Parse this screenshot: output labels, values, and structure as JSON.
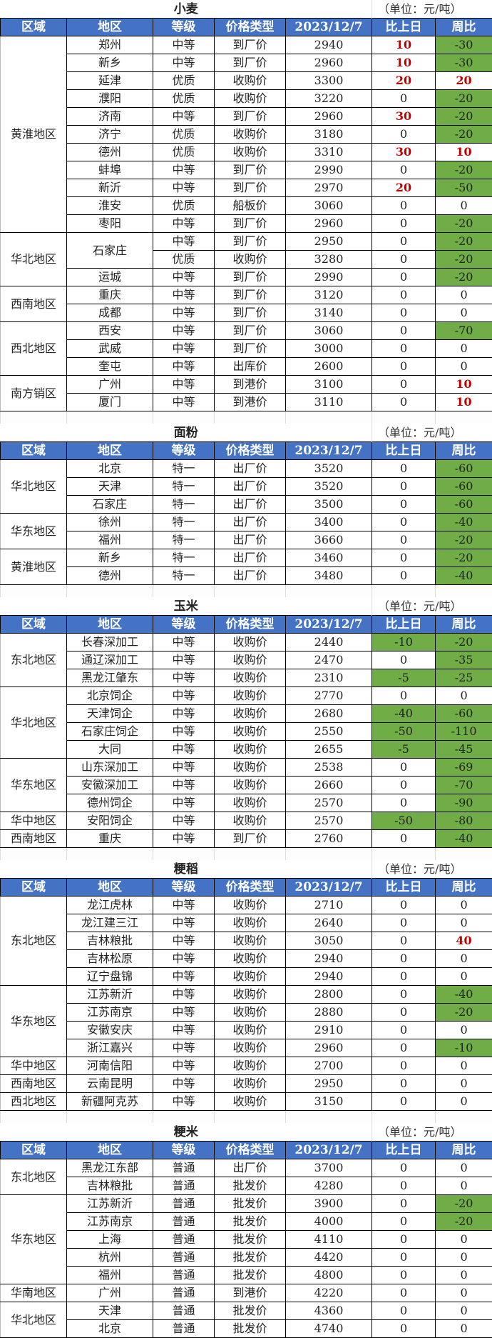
{
  "unit": "（单位：元/吨）",
  "headers": [
    "区域",
    "地区",
    "等级",
    "价格类型",
    "2023/12/7",
    "比上日",
    "周比"
  ],
  "colors": {
    "header_bg": "#4472C4",
    "decrease_bg": "#70AD47",
    "increase_text": "#C00000"
  },
  "tables": [
    {
      "title": "小麦",
      "groups": [
        {
          "region": "黄淮地区",
          "rows": [
            [
              "郑州",
              "中等",
              "到厂价",
              "2940",
              "10",
              "-30"
            ],
            [
              "新乡",
              "中等",
              "到厂价",
              "2960",
              "10",
              "-30"
            ],
            [
              "延津",
              "优质",
              "收购价",
              "3300",
              "20",
              "20"
            ],
            [
              "濮阳",
              "优质",
              "收购价",
              "3220",
              "0",
              "-20"
            ],
            [
              "济南",
              "中等",
              "到厂价",
              "2960",
              "30",
              "-20"
            ],
            [
              "济宁",
              "优质",
              "收购价",
              "3180",
              "0",
              "-20"
            ],
            [
              "德州",
              "优质",
              "收购价",
              "3310",
              "30",
              "10"
            ],
            [
              "蚌埠",
              "中等",
              "到厂价",
              "2990",
              "0",
              "-20"
            ],
            [
              "新沂",
              "中等",
              "到厂价",
              "2970",
              "20",
              "-50"
            ],
            [
              "淮安",
              "优质",
              "船板价",
              "3060",
              "0",
              "0"
            ],
            [
              "枣阳",
              "中等",
              "到厂价",
              "2960",
              "0",
              "-20"
            ]
          ]
        },
        {
          "region": "华北地区",
          "rows": [
            [
              "石家庄",
              "中等",
              "到厂价",
              "2950",
              "0",
              "-20"
            ],
            [
              "",
              "优质",
              "收购价",
              "3280",
              "0",
              "-20"
            ],
            [
              "运城",
              "中等",
              "到厂价",
              "2990",
              "0",
              "-20"
            ]
          ]
        },
        {
          "region": "西南地区",
          "rows": [
            [
              "重庆",
              "中等",
              "到厂价",
              "3120",
              "0",
              "0"
            ],
            [
              "成都",
              "中等",
              "到厂价",
              "3140",
              "0",
              "0"
            ]
          ]
        },
        {
          "region": "西北地区",
          "rows": [
            [
              "西安",
              "中等",
              "到厂价",
              "3060",
              "0",
              "-70"
            ],
            [
              "武威",
              "中等",
              "到厂价",
              "3000",
              "0",
              "0"
            ],
            [
              "奎屯",
              "中等",
              "出库价",
              "2600",
              "0",
              "0"
            ]
          ]
        },
        {
          "region": "南方销区",
          "rows": [
            [
              "广州",
              "中等",
              "到港价",
              "3100",
              "0",
              "10"
            ],
            [
              "厦门",
              "中等",
              "到港价",
              "3110",
              "0",
              "10"
            ]
          ]
        }
      ]
    },
    {
      "title": "面粉",
      "groups": [
        {
          "region": "华北地区",
          "rows": [
            [
              "北京",
              "特一",
              "出厂价",
              "3520",
              "0",
              "-60"
            ],
            [
              "天津",
              "特一",
              "出厂价",
              "3520",
              "0",
              "-60"
            ],
            [
              "石家庄",
              "特一",
              "出厂价",
              "3500",
              "0",
              "-60"
            ]
          ]
        },
        {
          "region": "华东地区",
          "rows": [
            [
              "徐州",
              "特一",
              "出厂价",
              "3400",
              "0",
              "-40"
            ],
            [
              "福州",
              "特一",
              "出厂价",
              "3660",
              "0",
              "-20"
            ]
          ]
        },
        {
          "region": "黄淮地区",
          "rows": [
            [
              "新乡",
              "特一",
              "出厂价",
              "3460",
              "0",
              "-20"
            ],
            [
              "德州",
              "特一",
              "出厂价",
              "3480",
              "0",
              "-40"
            ]
          ]
        }
      ]
    },
    {
      "title": "玉米",
      "groups": [
        {
          "region": "东北地区",
          "rows": [
            [
              "长春深加工",
              "中等",
              "收购价",
              "2440",
              "-10",
              "-20"
            ],
            [
              "通辽深加工",
              "中等",
              "收购价",
              "2470",
              "0",
              "-35"
            ],
            [
              "黑龙江肇东",
              "中等",
              "收购价",
              "2310",
              "-5",
              "-25"
            ]
          ]
        },
        {
          "region": "华北地区",
          "rows": [
            [
              "北京饲企",
              "中等",
              "收购价",
              "2770",
              "0",
              "0"
            ],
            [
              "天津饲企",
              "中等",
              "收购价",
              "2680",
              "-40",
              "-60"
            ],
            [
              "石家庄饲企",
              "中等",
              "收购价",
              "2550",
              "-50",
              "-110"
            ],
            [
              "大同",
              "中等",
              "收购价",
              "2655",
              "-5",
              "-45"
            ]
          ]
        },
        {
          "region": "华东地区",
          "rows": [
            [
              "山东深加工",
              "中等",
              "收购价",
              "2538",
              "0",
              "-69"
            ],
            [
              "安徽深加工",
              "中等",
              "收购价",
              "2660",
              "0",
              "-70"
            ],
            [
              "德州饲企",
              "中等",
              "收购价",
              "2570",
              "0",
              "-90"
            ]
          ]
        },
        {
          "region": "华中地区",
          "rows": [
            [
              "安阳饲企",
              "中等",
              "收购价",
              "2570",
              "-50",
              "-80"
            ]
          ]
        },
        {
          "region": "西南地区",
          "rows": [
            [
              "重庆",
              "中等",
              "到厂价",
              "2760",
              "0",
              "-40"
            ]
          ]
        }
      ]
    },
    {
      "title": "粳稻",
      "groups": [
        {
          "region": "东北地区",
          "rows": [
            [
              "龙江虎林",
              "中等",
              "收购价",
              "2710",
              "0",
              "0"
            ],
            [
              "龙江建三江",
              "中等",
              "收购价",
              "2640",
              "0",
              "0"
            ],
            [
              "吉林粮批",
              "中等",
              "收购价",
              "3050",
              "0",
              "40"
            ],
            [
              "吉林松原",
              "中等",
              "收购价",
              "2940",
              "0",
              "0"
            ],
            [
              "辽宁盘锦",
              "中等",
              "收购价",
              "2940",
              "0",
              "0"
            ]
          ]
        },
        {
          "region": "华东地区",
          "rows": [
            [
              "江苏新沂",
              "中等",
              "收购价",
              "2800",
              "0",
              "-40"
            ],
            [
              "江苏南京",
              "中等",
              "收购价",
              "2880",
              "0",
              "-20"
            ],
            [
              "安徽安庆",
              "中等",
              "收购价",
              "2910",
              "0",
              "0"
            ],
            [
              "浙江嘉兴",
              "中等",
              "收购价",
              "2960",
              "0",
              "-10"
            ]
          ]
        },
        {
          "region": "华中地区",
          "rows": [
            [
              "河南信阳",
              "中等",
              "收购价",
              "2700",
              "0",
              "0"
            ]
          ]
        },
        {
          "region": "西南地区",
          "rows": [
            [
              "云南昆明",
              "中等",
              "收购价",
              "2950",
              "0",
              "0"
            ]
          ]
        },
        {
          "region": "西北地区",
          "rows": [
            [
              "新疆阿克苏",
              "中等",
              "收购价",
              "3150",
              "0",
              "0"
            ]
          ]
        }
      ]
    },
    {
      "title": "粳米",
      "groups": [
        {
          "region": "东北地区",
          "rows": [
            [
              "黑龙江东部",
              "普通",
              "出厂价",
              "3700",
              "0",
              "0"
            ],
            [
              "吉林粮批",
              "普通",
              "批发价",
              "4280",
              "0",
              "0"
            ]
          ]
        },
        {
          "region": "华东地区",
          "rows": [
            [
              "江苏新沂",
              "普通",
              "批发价",
              "3900",
              "0",
              "-20"
            ],
            [
              "江苏南京",
              "普通",
              "批发价",
              "4000",
              "0",
              "-20"
            ],
            [
              "上海",
              "普通",
              "批发价",
              "4110",
              "0",
              "0"
            ],
            [
              "杭州",
              "普通",
              "批发价",
              "4420",
              "0",
              "0"
            ],
            [
              "福州",
              "普通",
              "批发价",
              "4800",
              "0",
              "0"
            ]
          ]
        },
        {
          "region": "华南地区",
          "rows": [
            [
              "广州",
              "普通",
              "到港价",
              "4220",
              "0",
              "0"
            ]
          ]
        },
        {
          "region": "华北地区",
          "rows": [
            [
              "天津",
              "普通",
              "批发价",
              "4360",
              "0",
              "0"
            ],
            [
              "北京",
              "普通",
              "批发价",
              "4740",
              "0",
              "0"
            ]
          ]
        }
      ]
    }
  ]
}
